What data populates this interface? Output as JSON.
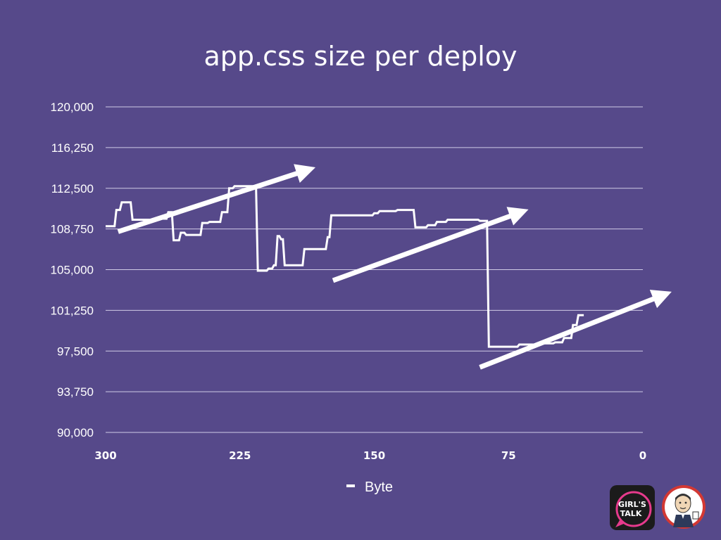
{
  "chart_data": {
    "type": "line",
    "title": "app.css size per deploy",
    "xlabel": "",
    "ylabel": "",
    "x_ticks": [
      300,
      225,
      150,
      75,
      0
    ],
    "xlim": [
      300,
      0
    ],
    "y_ticks": [
      "120,000",
      "116,250",
      "112,500",
      "108,750",
      "105,000",
      "101,250",
      "97,500",
      "93,750",
      "90,000"
    ],
    "ylim": [
      90000,
      120000
    ],
    "grid": true,
    "legend_position": "bottom-center",
    "series": [
      {
        "name": "Byte",
        "color": "#ffffff",
        "points": [
          [
            300,
            109000
          ],
          [
            295,
            109000
          ],
          [
            294,
            110500
          ],
          [
            292,
            110500
          ],
          [
            291,
            111200
          ],
          [
            286,
            111200
          ],
          [
            285,
            109600
          ],
          [
            270,
            109600
          ],
          [
            269,
            109700
          ],
          [
            266,
            109700
          ],
          [
            265,
            110300
          ],
          [
            263,
            110300
          ],
          [
            262,
            107700
          ],
          [
            259,
            107700
          ],
          [
            258,
            108400
          ],
          [
            256,
            108400
          ],
          [
            255,
            108200
          ],
          [
            247,
            108200
          ],
          [
            246,
            109300
          ],
          [
            243,
            109300
          ],
          [
            242,
            109400
          ],
          [
            236,
            109400
          ],
          [
            235,
            110300
          ],
          [
            232,
            110300
          ],
          [
            231,
            112500
          ],
          [
            229,
            112500
          ],
          [
            228,
            112700
          ],
          [
            216,
            112700
          ],
          [
            215,
            104900
          ],
          [
            210,
            104900
          ],
          [
            209,
            105100
          ],
          [
            207,
            105100
          ],
          [
            206,
            105400
          ],
          [
            205,
            105400
          ],
          [
            204,
            108100
          ],
          [
            203,
            108100
          ],
          [
            202,
            107800
          ],
          [
            201,
            107800
          ],
          [
            200,
            105400
          ],
          [
            190,
            105400
          ],
          [
            189,
            106900
          ],
          [
            177,
            106900
          ],
          [
            176,
            108000
          ],
          [
            175,
            108000
          ],
          [
            174,
            110000
          ],
          [
            151,
            110000
          ],
          [
            150,
            110200
          ],
          [
            148,
            110200
          ],
          [
            147,
            110400
          ],
          [
            138,
            110400
          ],
          [
            137,
            110500
          ],
          [
            128,
            110500
          ],
          [
            127,
            108900
          ],
          [
            121,
            108900
          ],
          [
            120,
            109100
          ],
          [
            116,
            109100
          ],
          [
            115,
            109400
          ],
          [
            110,
            109400
          ],
          [
            109,
            109600
          ],
          [
            92,
            109600
          ],
          [
            91,
            109500
          ],
          [
            87,
            109500
          ],
          [
            86,
            97900
          ],
          [
            70,
            97900
          ],
          [
            69,
            98100
          ],
          [
            60,
            98100
          ],
          [
            59,
            98200
          ],
          [
            50,
            98200
          ],
          [
            49,
            98300
          ],
          [
            45,
            98300
          ],
          [
            44,
            98700
          ],
          [
            40,
            98700
          ],
          [
            39,
            99900
          ],
          [
            37,
            99900
          ],
          [
            36,
            100800
          ],
          [
            33,
            100800
          ]
        ]
      }
    ],
    "annotations": [
      {
        "type": "arrow",
        "from": [
          293,
          108500
        ],
        "to": [
          187,
          114200
        ]
      },
      {
        "type": "arrow",
        "from": [
          173,
          104000
        ],
        "to": [
          68,
          110300
        ]
      },
      {
        "type": "arrow",
        "from": [
          91,
          96000
        ],
        "to": [
          -12,
          102700
        ]
      }
    ]
  },
  "legend": {
    "label": "Byte"
  },
  "logos": {
    "girls_talk": "GIRL'S TALK",
    "jenkins": "jenkins-butler-logo"
  }
}
